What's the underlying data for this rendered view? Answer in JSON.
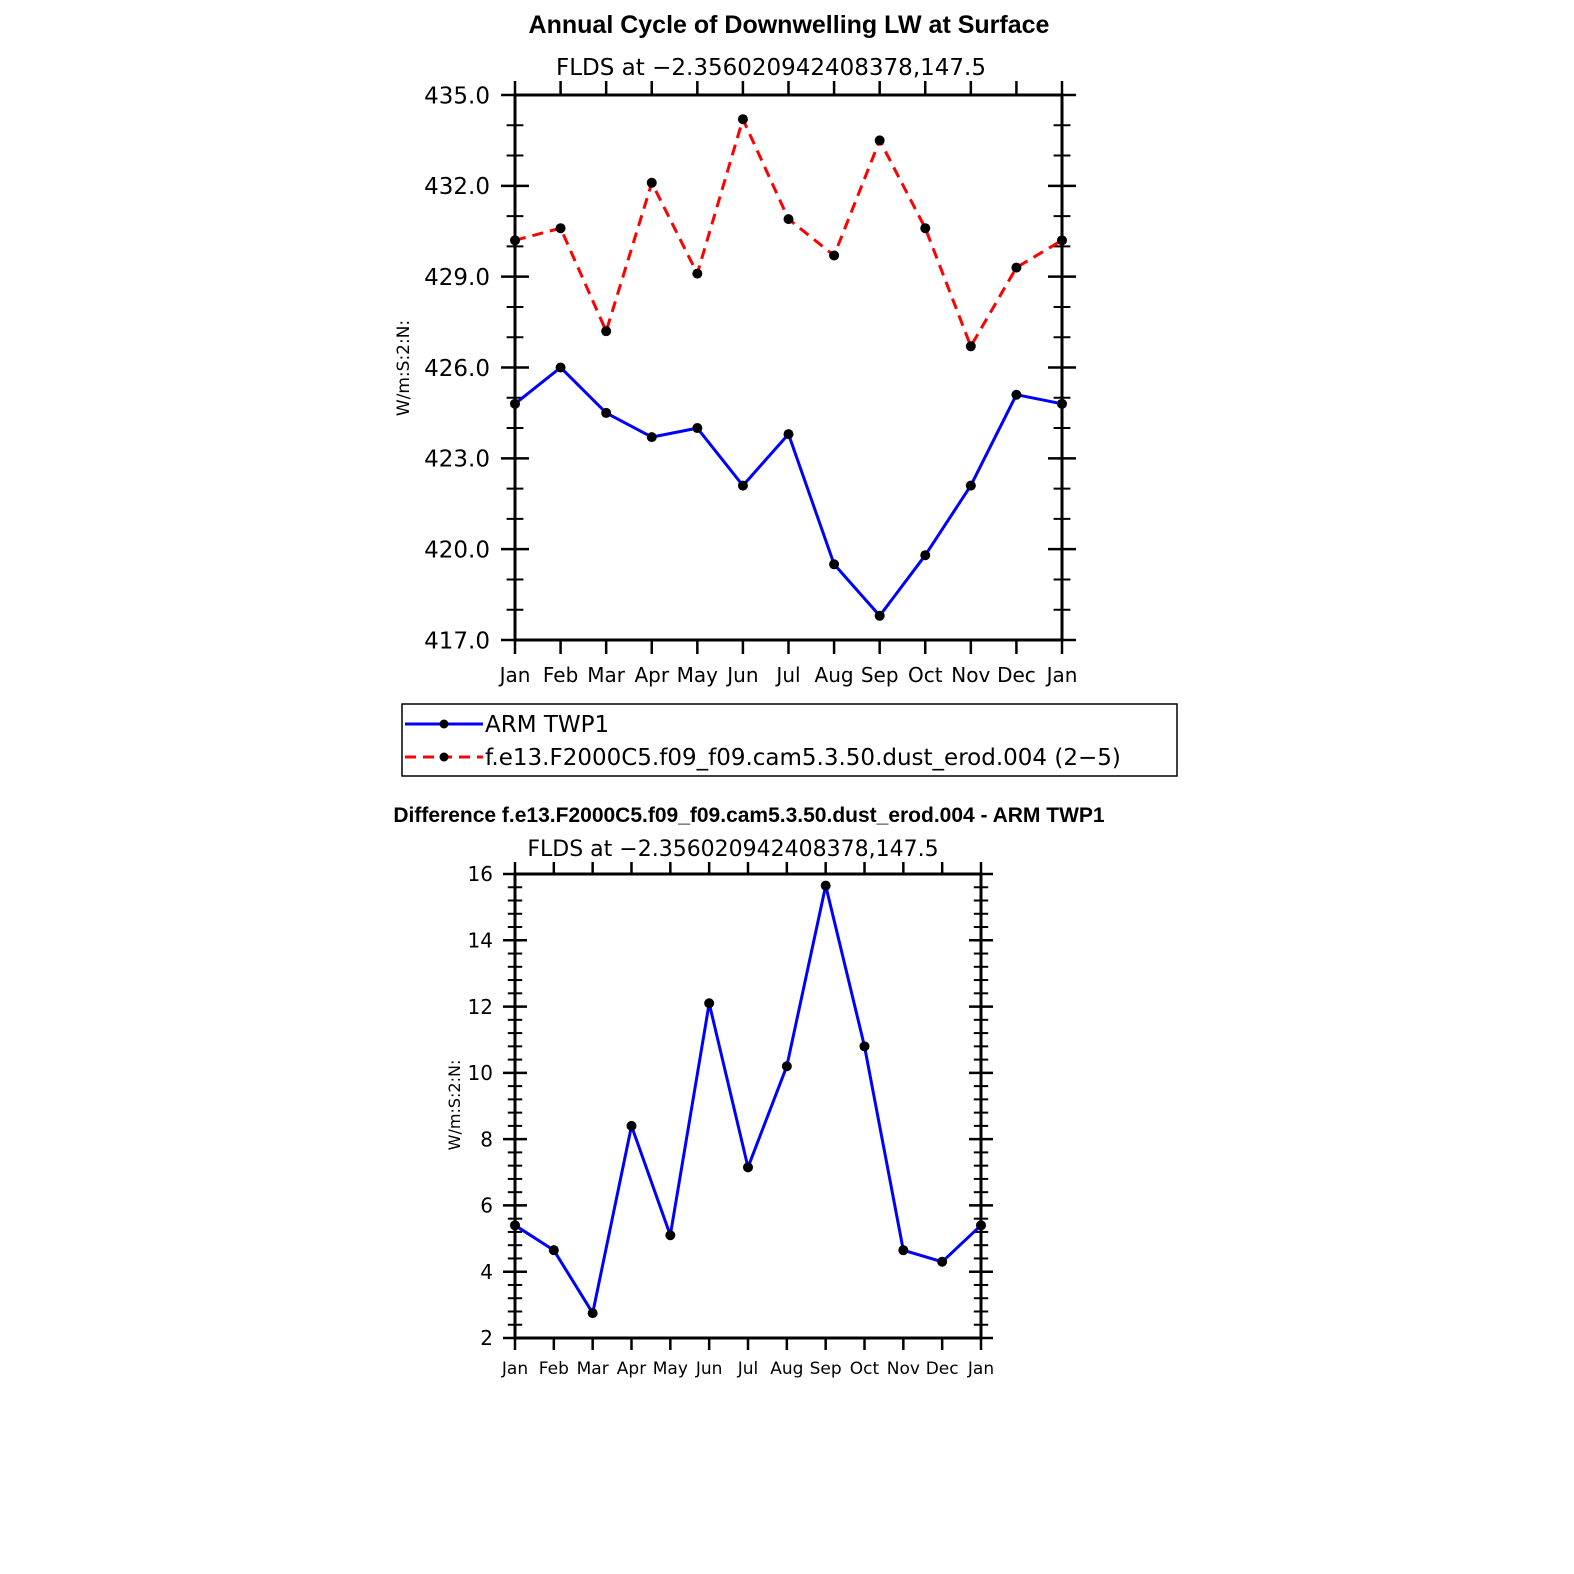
{
  "chart_data": [
    {
      "type": "line",
      "title": "Annual Cycle of Downwelling LW at Surface",
      "subtitle": "FLDS at −2.356020942408378,147.5",
      "ylabel": "W/m:S:2:N:",
      "xlabel": "",
      "categories": [
        "Jan",
        "Feb",
        "Mar",
        "Apr",
        "May",
        "Jun",
        "Jul",
        "Aug",
        "Sep",
        "Oct",
        "Nov",
        "Dec",
        "Jan"
      ],
      "yticks": [
        "435.0",
        "432.0",
        "429.0",
        "426.0",
        "423.0",
        "420.0",
        "417.0"
      ],
      "ylim": [
        417,
        435
      ],
      "grid": false,
      "legend_placement": "below",
      "series": [
        {
          "name": "ARM TWP1",
          "color": "#0000ff",
          "dash": "solid",
          "values": [
            424.8,
            426.0,
            424.5,
            423.7,
            424.0,
            422.1,
            423.8,
            419.5,
            417.8,
            419.8,
            422.1,
            425.1,
            424.8
          ]
        },
        {
          "name": "f.e13.F2000C5.f09_f09.cam5.3.50.dust_erod.004 (2−5)",
          "color": "#ff0000",
          "dash": "dashed",
          "values": [
            430.2,
            430.6,
            427.2,
            432.1,
            429.1,
            434.2,
            430.9,
            429.7,
            433.5,
            430.6,
            426.7,
            429.3,
            430.2
          ]
        }
      ]
    },
    {
      "type": "line",
      "title": "Difference f.e13.F2000C5.f09_f09.cam5.3.50.dust_erod.004 - ARM TWP1",
      "subtitle": "FLDS at −2.356020942408378,147.5",
      "ylabel": "W/m:S:2:N:",
      "xlabel": "",
      "categories": [
        "Jan",
        "Feb",
        "Mar",
        "Apr",
        "May",
        "Jun",
        "Jul",
        "Aug",
        "Sep",
        "Oct",
        "Nov",
        "Dec",
        "Jan"
      ],
      "yticks": [
        "16",
        "14",
        "12",
        "10",
        "8",
        "6",
        "4",
        "2"
      ],
      "ylim": [
        2,
        16
      ],
      "grid": false,
      "series": [
        {
          "color": "#0000ff",
          "dash": "solid",
          "values": [
            5.4,
            4.65,
            2.75,
            8.4,
            5.1,
            12.1,
            7.15,
            10.2,
            15.65,
            10.8,
            4.65,
            4.3,
            5.4
          ]
        }
      ]
    }
  ]
}
